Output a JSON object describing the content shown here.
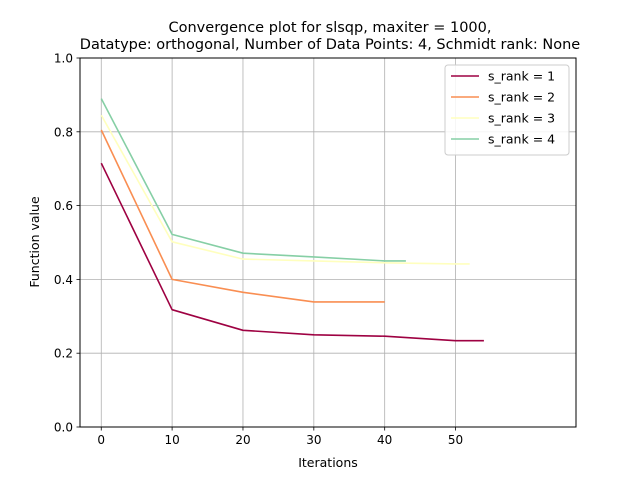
{
  "chart_data": {
    "type": "line",
    "title_line1": "Convergence plot for slsqp, maxiter = 1000,",
    "title_line2": "Datatype: orthogonal, Number of Data Points: 4, Schmidt rank: None",
    "xlabel": "Iterations",
    "ylabel": "Function value",
    "xlim": [
      -3,
      67
    ],
    "ylim": [
      0.0,
      1.0
    ],
    "xticks": [
      0,
      10,
      20,
      30,
      40,
      50
    ],
    "yticks": [
      0.0,
      0.2,
      0.4,
      0.6,
      0.8,
      1.0
    ],
    "xtick_labels": [
      "0",
      "10",
      "20",
      "30",
      "40",
      "50"
    ],
    "ytick_labels": [
      "0.0",
      "0.2",
      "0.4",
      "0.6",
      "0.8",
      "1.0"
    ],
    "grid": true,
    "legend_position": "top-right",
    "series": [
      {
        "name": "s_rank = 1",
        "color": "#9e0142",
        "x": [
          0,
          10,
          20,
          30,
          40,
          50,
          54
        ],
        "y": [
          0.715,
          0.318,
          0.262,
          0.25,
          0.246,
          0.234,
          0.234
        ]
      },
      {
        "name": "s_rank = 2",
        "color": "#f98e52",
        "x": [
          0,
          10,
          20,
          30,
          40
        ],
        "y": [
          0.805,
          0.4,
          0.365,
          0.339,
          0.339
        ]
      },
      {
        "name": "s_rank = 3",
        "color": "#ffffbe",
        "x": [
          0,
          10,
          20,
          30,
          40,
          50,
          52
        ],
        "y": [
          0.845,
          0.502,
          0.455,
          0.45,
          0.445,
          0.442,
          0.442
        ]
      },
      {
        "name": "s_rank = 4",
        "color": "#86cfa5",
        "x": [
          0,
          10,
          20,
          30,
          40,
          43
        ],
        "y": [
          0.89,
          0.522,
          0.471,
          0.461,
          0.45,
          0.45
        ]
      }
    ]
  }
}
